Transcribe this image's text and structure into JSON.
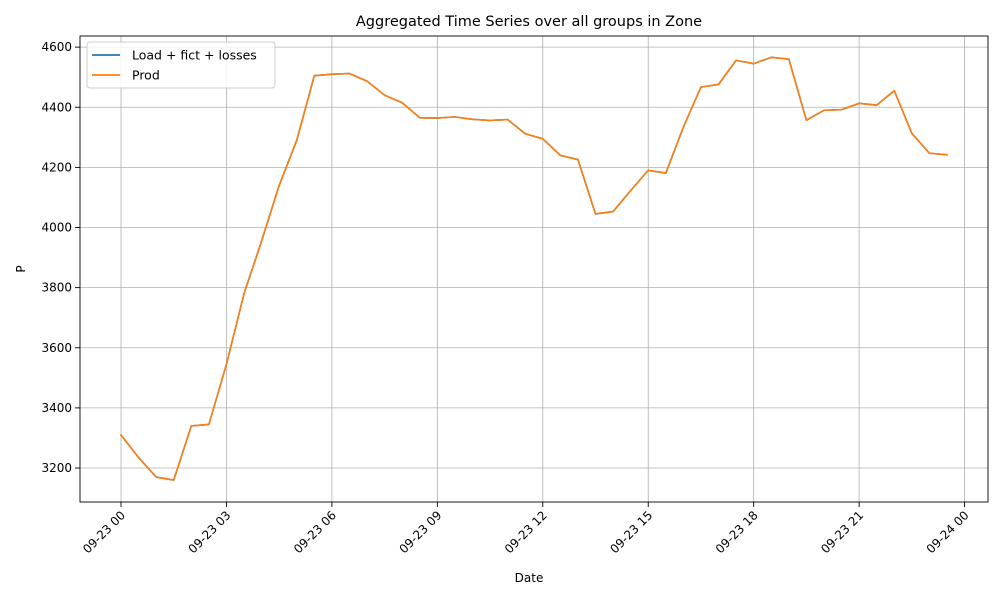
{
  "chart_data": {
    "type": "line",
    "title": "Aggregated Time Series over all groups in Zone",
    "xlabel": "Date",
    "ylabel": "P",
    "grid": true,
    "legend_position": "top-left",
    "xlim": [
      "2023-09-22T22:50",
      "2023-09-24T00:40"
    ],
    "ylim": [
      3087,
      4637
    ],
    "x_ticks": [
      {
        "label": "09-23 00",
        "value": "2023-09-23T00:00"
      },
      {
        "label": "09-23 03",
        "value": "2023-09-23T03:00"
      },
      {
        "label": "09-23 06",
        "value": "2023-09-23T06:00"
      },
      {
        "label": "09-23 09",
        "value": "2023-09-23T09:00"
      },
      {
        "label": "09-23 12",
        "value": "2023-09-23T12:00"
      },
      {
        "label": "09-23 15",
        "value": "2023-09-23T15:00"
      },
      {
        "label": "09-23 18",
        "value": "2023-09-23T18:00"
      },
      {
        "label": "09-23 21",
        "value": "2023-09-23T21:00"
      },
      {
        "label": "09-24 00",
        "value": "2023-09-24T00:00"
      }
    ],
    "y_ticks": [
      3200,
      3400,
      3600,
      3800,
      4000,
      4200,
      4400,
      4600
    ],
    "x": [
      "2023-09-23T00:00",
      "2023-09-23T00:30",
      "2023-09-23T01:00",
      "2023-09-23T01:30",
      "2023-09-23T02:00",
      "2023-09-23T02:30",
      "2023-09-23T03:00",
      "2023-09-23T03:30",
      "2023-09-23T04:00",
      "2023-09-23T04:30",
      "2023-09-23T05:00",
      "2023-09-23T05:30",
      "2023-09-23T06:00",
      "2023-09-23T06:30",
      "2023-09-23T07:00",
      "2023-09-23T07:30",
      "2023-09-23T08:00",
      "2023-09-23T08:30",
      "2023-09-23T09:00",
      "2023-09-23T09:30",
      "2023-09-23T10:00",
      "2023-09-23T10:30",
      "2023-09-23T11:00",
      "2023-09-23T11:30",
      "2023-09-23T12:00",
      "2023-09-23T12:30",
      "2023-09-23T13:00",
      "2023-09-23T13:30",
      "2023-09-23T14:00",
      "2023-09-23T14:30",
      "2023-09-23T15:00",
      "2023-09-23T15:30",
      "2023-09-23T16:00",
      "2023-09-23T16:30",
      "2023-09-23T17:00",
      "2023-09-23T17:30",
      "2023-09-23T18:00",
      "2023-09-23T18:30",
      "2023-09-23T19:00",
      "2023-09-23T19:30",
      "2023-09-23T20:00",
      "2023-09-23T20:30",
      "2023-09-23T21:00",
      "2023-09-23T21:30",
      "2023-09-23T22:00",
      "2023-09-23T22:30",
      "2023-09-23T23:00",
      "2023-09-23T23:30"
    ],
    "series": [
      {
        "name": "Load + fict + losses",
        "color": "#1f77b4",
        "values": [
          3310,
          3235,
          3170,
          3160,
          3340,
          3345,
          3545,
          3780,
          3955,
          4140,
          4290,
          4505,
          4510,
          4512,
          4487,
          4440,
          4415,
          4365,
          4364,
          4368,
          4360,
          4356,
          4359,
          4312,
          4295,
          4240,
          4226,
          4045,
          4053,
          4123,
          4190,
          4181,
          4334,
          4467,
          4476,
          4556,
          4545,
          4566,
          4560,
          4357,
          4390,
          4392,
          4413,
          4407,
          4455,
          4313,
          4247,
          4242
        ]
      },
      {
        "name": "Prod",
        "color": "#ff7f0e",
        "values": [
          3310,
          3235,
          3170,
          3160,
          3340,
          3345,
          3545,
          3780,
          3955,
          4140,
          4290,
          4505,
          4510,
          4512,
          4487,
          4440,
          4415,
          4365,
          4364,
          4368,
          4360,
          4356,
          4359,
          4312,
          4295,
          4240,
          4226,
          4045,
          4053,
          4123,
          4190,
          4181,
          4334,
          4467,
          4476,
          4556,
          4545,
          4566,
          4560,
          4357,
          4390,
          4392,
          4413,
          4407,
          4455,
          4313,
          4247,
          4242
        ]
      }
    ]
  }
}
